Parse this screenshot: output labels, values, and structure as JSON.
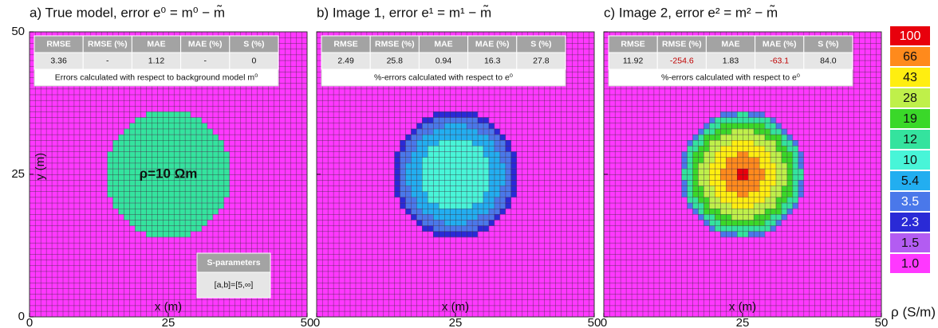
{
  "chart_data": [
    {
      "type": "heatmap",
      "title": "a) True model, error e⁰ = m⁰ − m̃",
      "xlabel": "x (m)",
      "ylabel": "y (m)",
      "xlim": [
        0,
        50
      ],
      "ylim": [
        0,
        50
      ],
      "xticks": [
        0,
        25,
        50
      ],
      "yticks": [
        0,
        25,
        50
      ],
      "background": 1,
      "rings": [
        {
          "radius": 11.2,
          "value": 12
        }
      ],
      "annotation": "ρ=10 Ωm",
      "table": {
        "columns": [
          "RMSE",
          "RMSE (%)",
          "MAE",
          "MAE (%)",
          "S (%)"
        ],
        "rows": [
          [
            "3.36",
            "-",
            "1.12",
            "-",
            "0"
          ]
        ],
        "note": "Errors calculated with respect to background model m⁰"
      },
      "legend_box": {
        "title": "S-parameters",
        "text": "[a,b]=[5,∞]"
      }
    },
    {
      "type": "heatmap",
      "title": "b) Image 1, error e¹ = m¹ − m̃",
      "xlabel": "x (m)",
      "xlim": [
        0,
        50
      ],
      "ylim": [
        0,
        50
      ],
      "xticks": [
        0,
        25,
        50
      ],
      "yticks": [
        0,
        25,
        50
      ],
      "background": 1,
      "rings": [
        {
          "radius": 11.2,
          "value": 2.3
        },
        {
          "radius": 10.2,
          "value": 3.5
        },
        {
          "radius": 8.7,
          "value": 5.4
        },
        {
          "radius": 6.4,
          "value": 10
        }
      ],
      "table": {
        "columns": [
          "RMSE",
          "RMSE (%)",
          "MAE",
          "MAE (%)",
          "S (%)"
        ],
        "rows": [
          [
            "2.49",
            "25.8",
            "0.94",
            "16.3",
            "27.8"
          ]
        ],
        "note": "%-errors calculated with respect to e⁰"
      }
    },
    {
      "type": "heatmap",
      "title": "c) Image 2, error e² = m² − m̃",
      "xlabel": "x (m)",
      "xlim": [
        0,
        50
      ],
      "ylim": [
        0,
        50
      ],
      "xticks": [
        0,
        25,
        50
      ],
      "yticks": [
        0,
        25,
        50
      ],
      "background": 1,
      "rings": [
        {
          "radius": 11.2,
          "value": 3.5
        },
        {
          "radius": 10.6,
          "value": 12
        },
        {
          "radius": 9.3,
          "value": 19
        },
        {
          "radius": 7.8,
          "value": 28
        },
        {
          "radius": 6.0,
          "value": 43
        },
        {
          "radius": 3.8,
          "value": 66
        },
        {
          "radius": 1.5,
          "value": 100
        }
      ],
      "table": {
        "columns": [
          "RMSE",
          "RMSE (%)",
          "MAE",
          "MAE (%)",
          "S (%)"
        ],
        "rows": [
          [
            "11.92",
            "-254.6",
            "1.83",
            "-63.1",
            "84.0"
          ]
        ],
        "note": "%-errors calculated with respect to e⁰",
        "negative_color": "#c00000"
      }
    },
    {
      "type": "colorbar",
      "label": "ρ (S/m)",
      "levels": [
        100,
        66,
        43,
        28,
        19,
        12,
        10,
        {
          "value": 5.4,
          "label": "5.4"
        },
        {
          "value": 3.5,
          "label": "3.5"
        },
        {
          "value": 2.3,
          "label": "2.3"
        },
        {
          "value": 1.5,
          "label": "1.5"
        },
        {
          "value": 1,
          "label": "1.0"
        }
      ],
      "colors": [
        "#e8000c",
        "#ff8a1c",
        "#ffee10",
        "#bff04a",
        "#3ad829",
        "#34e39e",
        "#48f5d8",
        "#22aef0",
        "#4a78ea",
        "#2a2ad6",
        "#b35cf2",
        "#ff38ff"
      ]
    }
  ]
}
